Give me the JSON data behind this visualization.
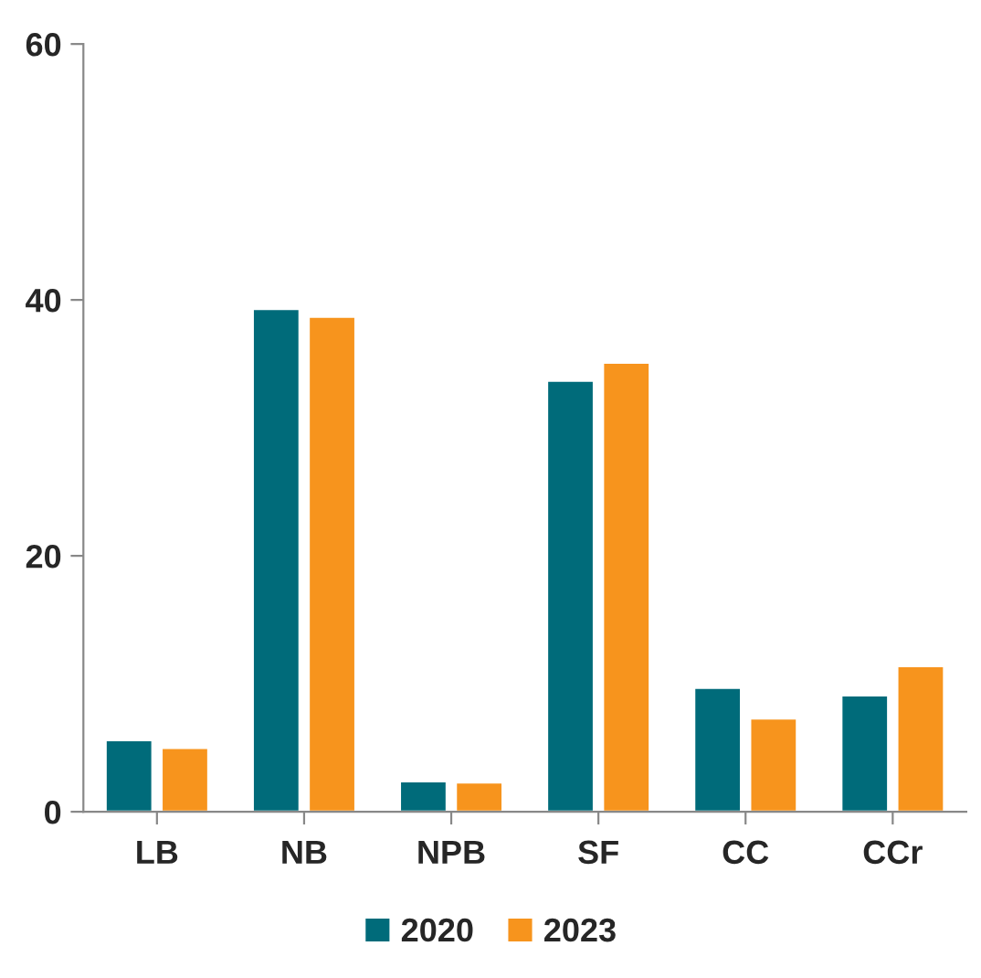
{
  "chart_data": {
    "type": "bar",
    "categories": [
      "LB",
      "NB",
      "NPB",
      "SF",
      "CC",
      "CCr"
    ],
    "series": [
      {
        "name": "2020",
        "color": "#006b7a",
        "values": [
          5.6,
          39.3,
          2.4,
          33.7,
          9.7,
          9.1
        ]
      },
      {
        "name": "2023",
        "color": "#f7941d",
        "values": [
          5.0,
          38.7,
          2.3,
          35.1,
          7.3,
          11.4
        ]
      }
    ],
    "ylim": [
      0,
      60
    ],
    "yticks": [
      0,
      20,
      40,
      60
    ],
    "grid": false,
    "legend": "bottom"
  }
}
